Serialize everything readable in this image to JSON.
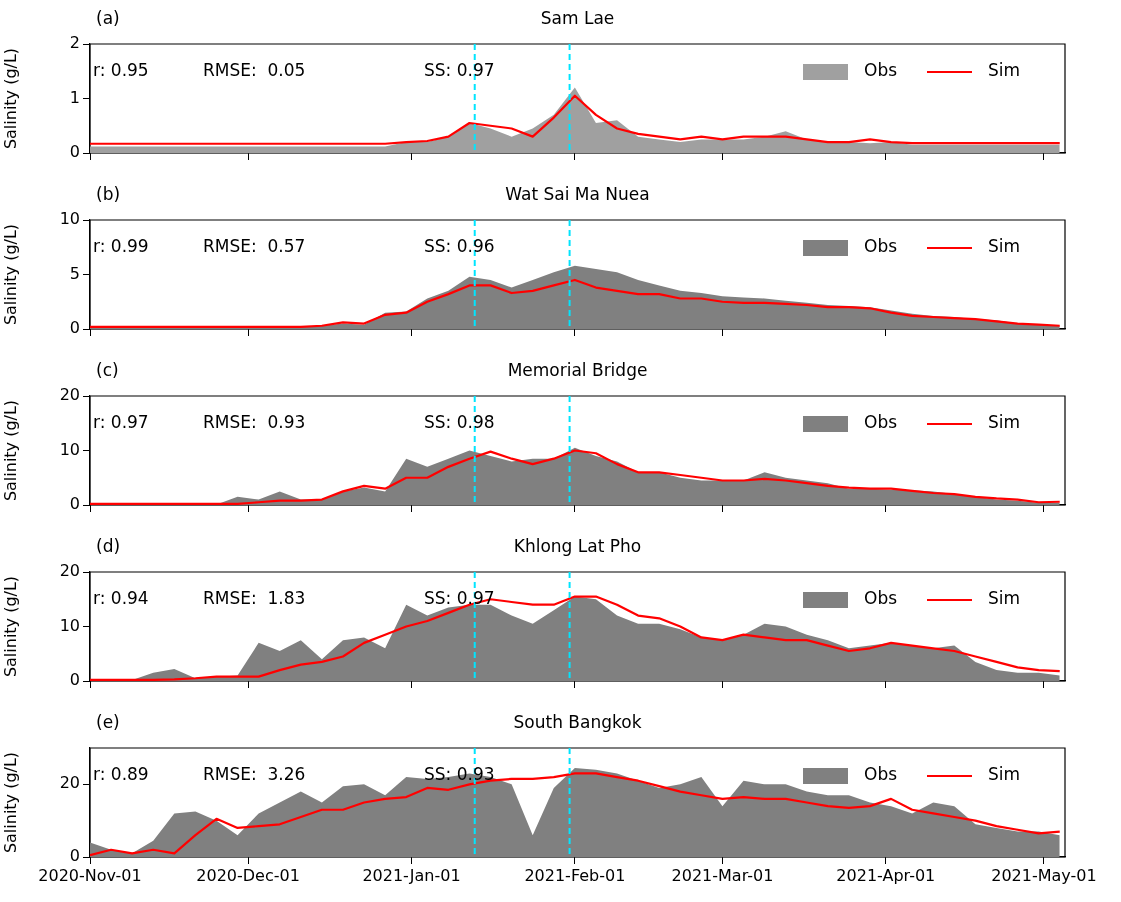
{
  "chart_data": [
    {
      "type": "area",
      "title": "Sam Lae",
      "ylabel": "Salinity (g/L)",
      "annotations": [
        "(a)",
        "r: 0.95",
        "RMSE:  0.05",
        "SS: 0.97"
      ],
      "legend": "top right",
      "tick_labels": "y",
      "x": [
        "2020-11-01",
        "2020-11-05",
        "2020-11-09",
        "2020-11-13",
        "2020-11-17",
        "2020-11-21",
        "2020-11-25",
        "2020-11-29",
        "2020-12-03",
        "2020-12-07",
        "2020-12-11",
        "2020-12-15",
        "2020-12-19",
        "2020-12-23",
        "2020-12-27",
        "2020-12-31",
        "2021-01-04",
        "2021-01-08",
        "2021-01-12",
        "2021-01-16",
        "2021-01-20",
        "2021-01-24",
        "2021-01-28",
        "2021-02-01",
        "2021-02-05",
        "2021-02-09",
        "2021-02-13",
        "2021-02-17",
        "2021-02-21",
        "2021-02-25",
        "2021-03-01",
        "2021-03-05",
        "2021-03-09",
        "2021-03-13",
        "2021-03-17",
        "2021-03-21",
        "2021-03-25",
        "2021-03-29",
        "2021-04-02",
        "2021-04-06",
        "2021-04-10",
        "2021-04-14",
        "2021-04-18",
        "2021-04-22",
        "2021-04-26",
        "2021-04-30",
        "2021-05-04"
      ],
      "xlim": [
        "2020-11-01",
        "2021-05-05"
      ],
      "xticks": [
        {
          "value": "2020-11-01",
          "label": null
        },
        {
          "value": "2020-12-01",
          "label": null
        },
        {
          "value": "2021-01-01",
          "label": null
        },
        {
          "value": "2021-02-01",
          "label": null
        },
        {
          "value": "2021-03-01",
          "label": null
        },
        {
          "value": "2021-04-01",
          "label": null
        },
        {
          "value": "2021-05-01",
          "label": null
        }
      ],
      "ylim": [
        0,
        2
      ],
      "yticks": [
        0,
        1,
        2
      ],
      "ref_lines": [
        {
          "axis": "x",
          "value": "2021-01-13",
          "color": "#00e5ff",
          "line_style": "dashed"
        },
        {
          "axis": "x",
          "value": "2021-01-31",
          "color": "#00e5ff",
          "line_style": "dashed"
        }
      ],
      "series": [
        {
          "name": "Obs",
          "type": "area",
          "color": "#a0a0a0",
          "values": [
            0.12,
            0.12,
            0.12,
            0.12,
            0.12,
            0.12,
            0.12,
            0.12,
            0.12,
            0.12,
            0.12,
            0.12,
            0.12,
            0.12,
            0.12,
            0.2,
            0.2,
            0.3,
            0.55,
            0.45,
            0.3,
            0.45,
            0.7,
            1.2,
            0.55,
            0.6,
            0.3,
            0.25,
            0.2,
            0.25,
            0.25,
            0.25,
            0.3,
            0.4,
            0.25,
            0.2,
            0.2,
            0.18,
            0.2,
            0.15,
            0.15,
            0.15,
            0.15,
            0.15,
            0.15,
            0.15,
            0.15
          ]
        },
        {
          "name": "Sim",
          "type": "line",
          "color": "#ff0000",
          "values": [
            0.17,
            0.17,
            0.17,
            0.17,
            0.17,
            0.17,
            0.17,
            0.17,
            0.17,
            0.17,
            0.17,
            0.17,
            0.17,
            0.17,
            0.17,
            0.2,
            0.22,
            0.3,
            0.55,
            0.5,
            0.45,
            0.3,
            0.65,
            1.05,
            0.7,
            0.45,
            0.35,
            0.3,
            0.25,
            0.3,
            0.25,
            0.3,
            0.3,
            0.3,
            0.25,
            0.2,
            0.2,
            0.25,
            0.2,
            0.18,
            0.18,
            0.18,
            0.18,
            0.18,
            0.18,
            0.18,
            0.18
          ]
        }
      ]
    },
    {
      "type": "area",
      "title": "Wat Sai Ma Nuea",
      "ylabel": "Salinity (g/L)",
      "annotations": [
        "(b)",
        "r: 0.99",
        "RMSE:  0.57",
        "SS: 0.96"
      ],
      "legend": "top right",
      "tick_labels": "y",
      "x": [
        "2020-11-01",
        "2020-11-05",
        "2020-11-09",
        "2020-11-13",
        "2020-11-17",
        "2020-11-21",
        "2020-11-25",
        "2020-11-29",
        "2020-12-03",
        "2020-12-07",
        "2020-12-11",
        "2020-12-15",
        "2020-12-19",
        "2020-12-23",
        "2020-12-27",
        "2020-12-31",
        "2021-01-04",
        "2021-01-08",
        "2021-01-12",
        "2021-01-16",
        "2021-01-20",
        "2021-01-24",
        "2021-01-28",
        "2021-02-01",
        "2021-02-05",
        "2021-02-09",
        "2021-02-13",
        "2021-02-17",
        "2021-02-21",
        "2021-02-25",
        "2021-03-01",
        "2021-03-05",
        "2021-03-09",
        "2021-03-13",
        "2021-03-17",
        "2021-03-21",
        "2021-03-25",
        "2021-03-29",
        "2021-04-02",
        "2021-04-06",
        "2021-04-10",
        "2021-04-14",
        "2021-04-18",
        "2021-04-22",
        "2021-04-26",
        "2021-04-30",
        "2021-05-04"
      ],
      "xlim": [
        "2020-11-01",
        "2021-05-05"
      ],
      "xticks": [
        {
          "value": "2020-11-01",
          "label": null
        },
        {
          "value": "2020-12-01",
          "label": null
        },
        {
          "value": "2021-01-01",
          "label": null
        },
        {
          "value": "2021-02-01",
          "label": null
        },
        {
          "value": "2021-03-01",
          "label": null
        },
        {
          "value": "2021-04-01",
          "label": null
        },
        {
          "value": "2021-05-01",
          "label": null
        }
      ],
      "ylim": [
        0,
        10
      ],
      "yticks": [
        0,
        5,
        10
      ],
      "ref_lines": [
        {
          "axis": "x",
          "value": "2021-01-13",
          "color": "#00e5ff",
          "line_style": "dashed"
        },
        {
          "axis": "x",
          "value": "2021-01-31",
          "color": "#00e5ff",
          "line_style": "dashed"
        }
      ],
      "series": [
        {
          "name": "Obs",
          "type": "area",
          "color": "#808080",
          "values": [
            0.1,
            0.1,
            0.1,
            0.1,
            0.1,
            0.1,
            0.1,
            0.1,
            0.1,
            0.1,
            0.2,
            0.3,
            0.5,
            0.4,
            1.5,
            1.6,
            2.8,
            3.5,
            4.8,
            4.5,
            3.8,
            4.5,
            5.2,
            5.8,
            5.5,
            5.2,
            4.5,
            4,
            3.5,
            3.3,
            3,
            2.9,
            2.8,
            2.6,
            2.4,
            2.2,
            2.1,
            2.0,
            1.7,
            1.4,
            1.2,
            1.1,
            0.9,
            0.8,
            0.5,
            0.4,
            0.3
          ]
        },
        {
          "name": "Sim",
          "type": "line",
          "color": "#ff0000",
          "values": [
            0.2,
            0.2,
            0.2,
            0.2,
            0.2,
            0.2,
            0.2,
            0.2,
            0.2,
            0.2,
            0.2,
            0.3,
            0.6,
            0.5,
            1.3,
            1.5,
            2.5,
            3.2,
            4.0,
            4.0,
            3.3,
            3.5,
            4.0,
            4.5,
            3.8,
            3.5,
            3.2,
            3.2,
            2.8,
            2.8,
            2.5,
            2.4,
            2.4,
            2.3,
            2.2,
            2.0,
            2.0,
            1.9,
            1.5,
            1.2,
            1.1,
            1.0,
            0.9,
            0.7,
            0.5,
            0.4,
            0.3
          ]
        }
      ]
    },
    {
      "type": "area",
      "title": "Memorial Bridge",
      "ylabel": "Salinity (g/L)",
      "annotations": [
        "(c)",
        "r: 0.97",
        "RMSE:  0.93",
        "SS: 0.98"
      ],
      "legend": "top right",
      "tick_labels": "y",
      "x": [
        "2020-11-01",
        "2020-11-05",
        "2020-11-09",
        "2020-11-13",
        "2020-11-17",
        "2020-11-21",
        "2020-11-25",
        "2020-11-29",
        "2020-12-03",
        "2020-12-07",
        "2020-12-11",
        "2020-12-15",
        "2020-12-19",
        "2020-12-23",
        "2020-12-27",
        "2020-12-31",
        "2021-01-04",
        "2021-01-08",
        "2021-01-12",
        "2021-01-16",
        "2021-01-20",
        "2021-01-24",
        "2021-01-28",
        "2021-02-01",
        "2021-02-05",
        "2021-02-09",
        "2021-02-13",
        "2021-02-17",
        "2021-02-21",
        "2021-02-25",
        "2021-03-01",
        "2021-03-05",
        "2021-03-09",
        "2021-03-13",
        "2021-03-17",
        "2021-03-21",
        "2021-03-25",
        "2021-03-29",
        "2021-04-02",
        "2021-04-06",
        "2021-04-10",
        "2021-04-14",
        "2021-04-18",
        "2021-04-22",
        "2021-04-26",
        "2021-04-30",
        "2021-05-04"
      ],
      "xlim": [
        "2020-11-01",
        "2021-05-05"
      ],
      "xticks": [
        {
          "value": "2020-11-01",
          "label": null
        },
        {
          "value": "2020-12-01",
          "label": null
        },
        {
          "value": "2021-01-01",
          "label": null
        },
        {
          "value": "2021-02-01",
          "label": null
        },
        {
          "value": "2021-03-01",
          "label": null
        },
        {
          "value": "2021-04-01",
          "label": null
        },
        {
          "value": "2021-05-01",
          "label": null
        }
      ],
      "ylim": [
        0,
        20
      ],
      "yticks": [
        0,
        10,
        20
      ],
      "ref_lines": [
        {
          "axis": "x",
          "value": "2021-01-13",
          "color": "#00e5ff",
          "line_style": "dashed"
        },
        {
          "axis": "x",
          "value": "2021-01-31",
          "color": "#00e5ff",
          "line_style": "dashed"
        }
      ],
      "series": [
        {
          "name": "Obs",
          "type": "area",
          "color": "#808080",
          "values": [
            0.1,
            0.1,
            0.1,
            0.1,
            0.1,
            0.1,
            0.1,
            1.5,
            1,
            2.5,
            1,
            1,
            2.5,
            3.2,
            2.5,
            8.5,
            7,
            8.5,
            10,
            9,
            8,
            8.5,
            8.5,
            10.5,
            9,
            8,
            6,
            6,
            5,
            4.5,
            4.5,
            4.5,
            6,
            5,
            4.5,
            4,
            3,
            3,
            2.8,
            2.7,
            2.5,
            2,
            1.5,
            1,
            0.8,
            0.4,
            0.4
          ]
        },
        {
          "name": "Sim",
          "type": "line",
          "color": "#ff0000",
          "values": [
            0.2,
            0.2,
            0.2,
            0.2,
            0.2,
            0.2,
            0.2,
            0.2,
            0.5,
            0.8,
            0.8,
            1,
            2.5,
            3.5,
            3,
            5,
            5,
            7,
            8.5,
            9.8,
            8.5,
            7.5,
            8.5,
            10,
            9.5,
            7.5,
            6,
            6,
            5.5,
            5,
            4.5,
            4.5,
            4.8,
            4.5,
            4,
            3.5,
            3.2,
            3,
            3,
            2.6,
            2.2,
            2,
            1.5,
            1.2,
            1,
            0.5,
            0.6
          ]
        }
      ]
    },
    {
      "type": "area",
      "title": "Khlong Lat Pho",
      "ylabel": "Salinity (g/L)",
      "annotations": [
        "(d)",
        "r: 0.94",
        "RMSE:  1.83",
        "SS: 0.97"
      ],
      "legend": "top right",
      "tick_labels": "y",
      "x": [
        "2020-11-01",
        "2020-11-05",
        "2020-11-09",
        "2020-11-13",
        "2020-11-17",
        "2020-11-21",
        "2020-11-25",
        "2020-11-29",
        "2020-12-03",
        "2020-12-07",
        "2020-12-11",
        "2020-12-15",
        "2020-12-19",
        "2020-12-23",
        "2020-12-27",
        "2020-12-31",
        "2021-01-04",
        "2021-01-08",
        "2021-01-12",
        "2021-01-16",
        "2021-01-20",
        "2021-01-24",
        "2021-01-28",
        "2021-02-01",
        "2021-02-05",
        "2021-02-09",
        "2021-02-13",
        "2021-02-17",
        "2021-02-21",
        "2021-02-25",
        "2021-03-01",
        "2021-03-05",
        "2021-03-09",
        "2021-03-13",
        "2021-03-17",
        "2021-03-21",
        "2021-03-25",
        "2021-03-29",
        "2021-04-02",
        "2021-04-06",
        "2021-04-10",
        "2021-04-14",
        "2021-04-18",
        "2021-04-22",
        "2021-04-26",
        "2021-04-30",
        "2021-05-04"
      ],
      "xlim": [
        "2020-11-01",
        "2021-05-05"
      ],
      "xticks": [
        {
          "value": "2020-11-01",
          "label": null
        },
        {
          "value": "2020-12-01",
          "label": null
        },
        {
          "value": "2021-01-01",
          "label": null
        },
        {
          "value": "2021-02-01",
          "label": null
        },
        {
          "value": "2021-03-01",
          "label": null
        },
        {
          "value": "2021-04-01",
          "label": null
        },
        {
          "value": "2021-05-01",
          "label": null
        }
      ],
      "ylim": [
        0,
        20
      ],
      "yticks": [
        0,
        10,
        20
      ],
      "ref_lines": [
        {
          "axis": "x",
          "value": "2021-01-13",
          "color": "#00e5ff",
          "line_style": "dashed"
        },
        {
          "axis": "x",
          "value": "2021-01-31",
          "color": "#00e5ff",
          "line_style": "dashed"
        }
      ],
      "series": [
        {
          "name": "Obs",
          "type": "area",
          "color": "#808080",
          "values": [
            0.1,
            0.1,
            0.2,
            1.5,
            2.2,
            0.5,
            0.8,
            1,
            7,
            5.5,
            7.5,
            4,
            7.5,
            8,
            6,
            14,
            12,
            13.5,
            14,
            14,
            12,
            10.5,
            13,
            15.5,
            15,
            12,
            10.5,
            10.5,
            9.5,
            8,
            7.5,
            8.5,
            10.5,
            10,
            8.5,
            7.5,
            6,
            6.5,
            7,
            6.5,
            6,
            6.5,
            3.5,
            2,
            1.5,
            1.5,
            1
          ]
        },
        {
          "name": "Sim",
          "type": "line",
          "color": "#ff0000",
          "values": [
            0.2,
            0.2,
            0.2,
            0.2,
            0.3,
            0.5,
            0.8,
            0.8,
            0.8,
            2,
            3,
            3.5,
            4.5,
            7,
            8.5,
            10,
            11,
            12.5,
            14,
            15,
            14.5,
            14,
            14,
            15.5,
            15.5,
            14,
            12,
            11.5,
            10,
            8,
            7.5,
            8.5,
            8,
            7.5,
            7.5,
            6.5,
            5.5,
            6,
            7,
            6.5,
            6,
            5.5,
            4.5,
            3.5,
            2.5,
            2,
            1.8
          ]
        }
      ]
    },
    {
      "type": "area",
      "title": "South Bangkok",
      "ylabel": "Salinity (g/L)",
      "annotations": [
        "(e)",
        "r: 0.89",
        "RMSE:  3.26",
        "SS: 0.93"
      ],
      "legend": "top right",
      "x": [
        "2020-11-01",
        "2020-11-05",
        "2020-11-09",
        "2020-11-13",
        "2020-11-17",
        "2020-11-21",
        "2020-11-25",
        "2020-11-29",
        "2020-12-03",
        "2020-12-07",
        "2020-12-11",
        "2020-12-15",
        "2020-12-19",
        "2020-12-23",
        "2020-12-27",
        "2020-12-31",
        "2021-01-04",
        "2021-01-08",
        "2021-01-12",
        "2021-01-16",
        "2021-01-20",
        "2021-01-24",
        "2021-01-28",
        "2021-02-01",
        "2021-02-05",
        "2021-02-09",
        "2021-02-13",
        "2021-02-17",
        "2021-02-21",
        "2021-02-25",
        "2021-03-01",
        "2021-03-05",
        "2021-03-09",
        "2021-03-13",
        "2021-03-17",
        "2021-03-21",
        "2021-03-25",
        "2021-03-29",
        "2021-04-02",
        "2021-04-06",
        "2021-04-10",
        "2021-04-14",
        "2021-04-18",
        "2021-04-22",
        "2021-04-26",
        "2021-04-30",
        "2021-05-04"
      ],
      "xlim": [
        "2020-11-01",
        "2021-05-05"
      ],
      "xticks": [
        {
          "value": "2020-11-01",
          "label": "2020-Nov-01"
        },
        {
          "value": "2020-12-01",
          "label": "2020-Dec-01"
        },
        {
          "value": "2021-01-01",
          "label": "2021-Jan-01"
        },
        {
          "value": "2021-02-01",
          "label": "2021-Feb-01"
        },
        {
          "value": "2021-03-01",
          "label": "2021-Mar-01"
        },
        {
          "value": "2021-04-01",
          "label": "2021-Apr-01"
        },
        {
          "value": "2021-05-01",
          "label": "2021-May-01"
        }
      ],
      "ylim": [
        0,
        30
      ],
      "yticks": [
        0,
        20
      ],
      "ref_lines": [
        {
          "axis": "x",
          "value": "2021-01-13",
          "color": "#00e5ff",
          "line_style": "dashed"
        },
        {
          "axis": "x",
          "value": "2021-01-31",
          "color": "#00e5ff",
          "line_style": "dashed"
        }
      ],
      "series": [
        {
          "name": "Obs",
          "type": "area",
          "color": "#808080",
          "values": [
            4,
            2,
            1,
            4.5,
            12,
            12.5,
            10,
            6,
            12,
            15,
            18,
            15,
            19.5,
            20,
            17,
            22,
            21.5,
            22,
            23,
            22,
            20,
            6,
            19,
            24.5,
            24,
            23,
            21,
            19,
            20,
            22,
            14,
            21,
            20,
            20,
            18,
            17,
            17,
            15,
            14,
            12,
            15,
            14,
            9,
            8,
            7,
            7,
            6
          ]
        },
        {
          "name": "Sim",
          "type": "line",
          "color": "#ff0000",
          "values": [
            0.5,
            2,
            1,
            2,
            1,
            6,
            10.5,
            8,
            8.5,
            9,
            11,
            13,
            13,
            15,
            16,
            16.5,
            19,
            18.5,
            20,
            21,
            21.5,
            21.5,
            22,
            23,
            23,
            22,
            21,
            19.5,
            18,
            17,
            16,
            16.5,
            16,
            16,
            15,
            14,
            13.5,
            14,
            16,
            13,
            12,
            11,
            10,
            8.5,
            7.5,
            6.5,
            7
          ]
        }
      ]
    }
  ]
}
